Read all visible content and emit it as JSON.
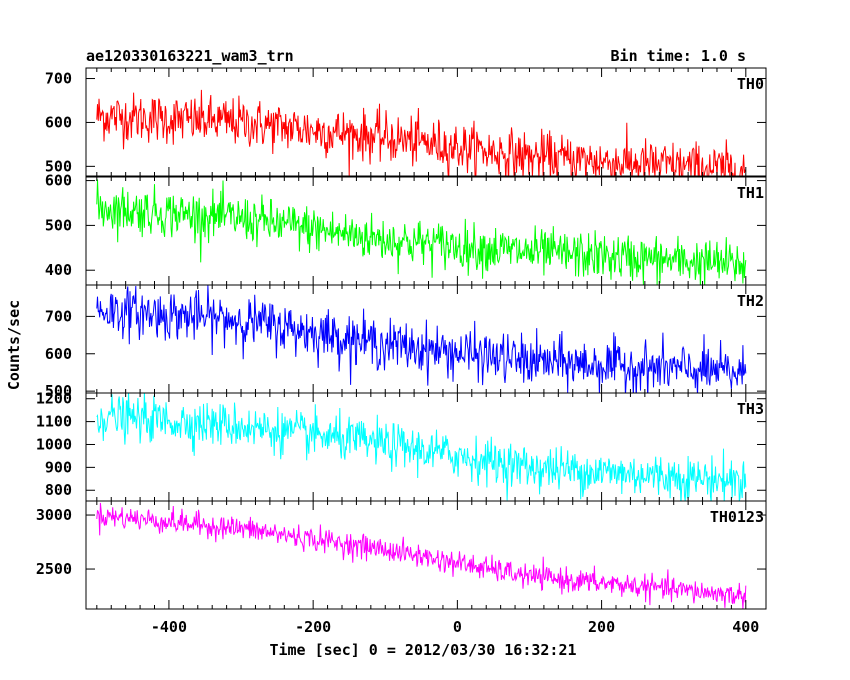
{
  "chart_data": {
    "type": "line",
    "title": "ae120330163221_wam3_trn",
    "subtitle": "Bin time: 1.0 s",
    "xlabel": "Time [sec] 0 = 2012/03/30 16:32:21",
    "ylabel": "Counts/sec",
    "xlim": [
      -515,
      428
    ],
    "xticks": [
      -400,
      -200,
      0,
      200,
      400
    ],
    "x_sampling": {
      "start": -500,
      "end": 400,
      "step": 1
    },
    "panels": [
      {
        "name": "TH0",
        "color": "#ff0000",
        "ylim": [
          478,
          724
        ],
        "yticks": [
          500,
          600,
          700
        ],
        "trend": [
          [
            -500,
            615
          ],
          [
            -300,
            600
          ],
          [
            -100,
            565
          ],
          [
            100,
            522
          ],
          [
            400,
            490
          ]
        ],
        "noise_sigma": 28
      },
      {
        "name": "TH1",
        "color": "#00ff00",
        "ylim": [
          367,
          608
        ],
        "yticks": [
          400,
          500,
          600
        ],
        "trend": [
          [
            -500,
            540
          ],
          [
            -300,
            515
          ],
          [
            -100,
            468
          ],
          [
            100,
            440
          ],
          [
            400,
            412
          ]
        ],
        "noise_sigma": 26
      },
      {
        "name": "TH2",
        "color": "#0000ff",
        "ylim": [
          495,
          784
        ],
        "yticks": [
          500,
          600,
          700
        ],
        "trend": [
          [
            -500,
            718
          ],
          [
            -300,
            690
          ],
          [
            -100,
            625
          ],
          [
            100,
            580
          ],
          [
            400,
            548
          ]
        ],
        "noise_sigma": 33
      },
      {
        "name": "TH3",
        "color": "#00ffff",
        "ylim": [
          753,
          1225
        ],
        "yticks": [
          800,
          900,
          1000,
          1100,
          1200
        ],
        "trend": [
          [
            -500,
            1125
          ],
          [
            -300,
            1080
          ],
          [
            -100,
            1000
          ],
          [
            100,
            900
          ],
          [
            400,
            840
          ]
        ],
        "noise_sigma": 48
      },
      {
        "name": "TH0123",
        "color": "#ff00ff",
        "ylim": [
          2130,
          3130
        ],
        "yticks": [
          2500,
          3000
        ],
        "trend": [
          [
            -500,
            3000
          ],
          [
            -300,
            2875
          ],
          [
            -100,
            2680
          ],
          [
            100,
            2430
          ],
          [
            400,
            2250
          ]
        ],
        "noise_sigma": 55
      }
    ],
    "grid": false,
    "legend": "none"
  }
}
